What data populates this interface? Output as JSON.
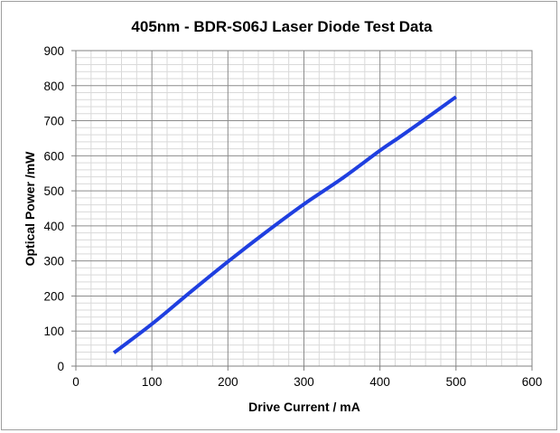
{
  "chart_data": {
    "type": "line",
    "title": "405nm - BDR-S06J Laser Diode Test Data",
    "xlabel": "Drive Current / mA",
    "ylabel": "Optical Power /mW",
    "xlim": [
      0,
      600
    ],
    "ylim": [
      0,
      900
    ],
    "xticks": [
      "0",
      "100",
      "200",
      "300",
      "400",
      "500",
      "600"
    ],
    "yticks": [
      "0",
      "100",
      "200",
      "300",
      "400",
      "500",
      "600",
      "700",
      "800",
      "900"
    ],
    "grid": true,
    "legend": "none",
    "series": [
      {
        "color": "#1f3fe0",
        "x": [
          50,
          100,
          150,
          200,
          250,
          300,
          350,
          400,
          425,
          450,
          500
        ],
        "y": [
          38,
          120,
          210,
          298,
          382,
          462,
          535,
          615,
          652,
          690,
          768
        ]
      }
    ]
  }
}
